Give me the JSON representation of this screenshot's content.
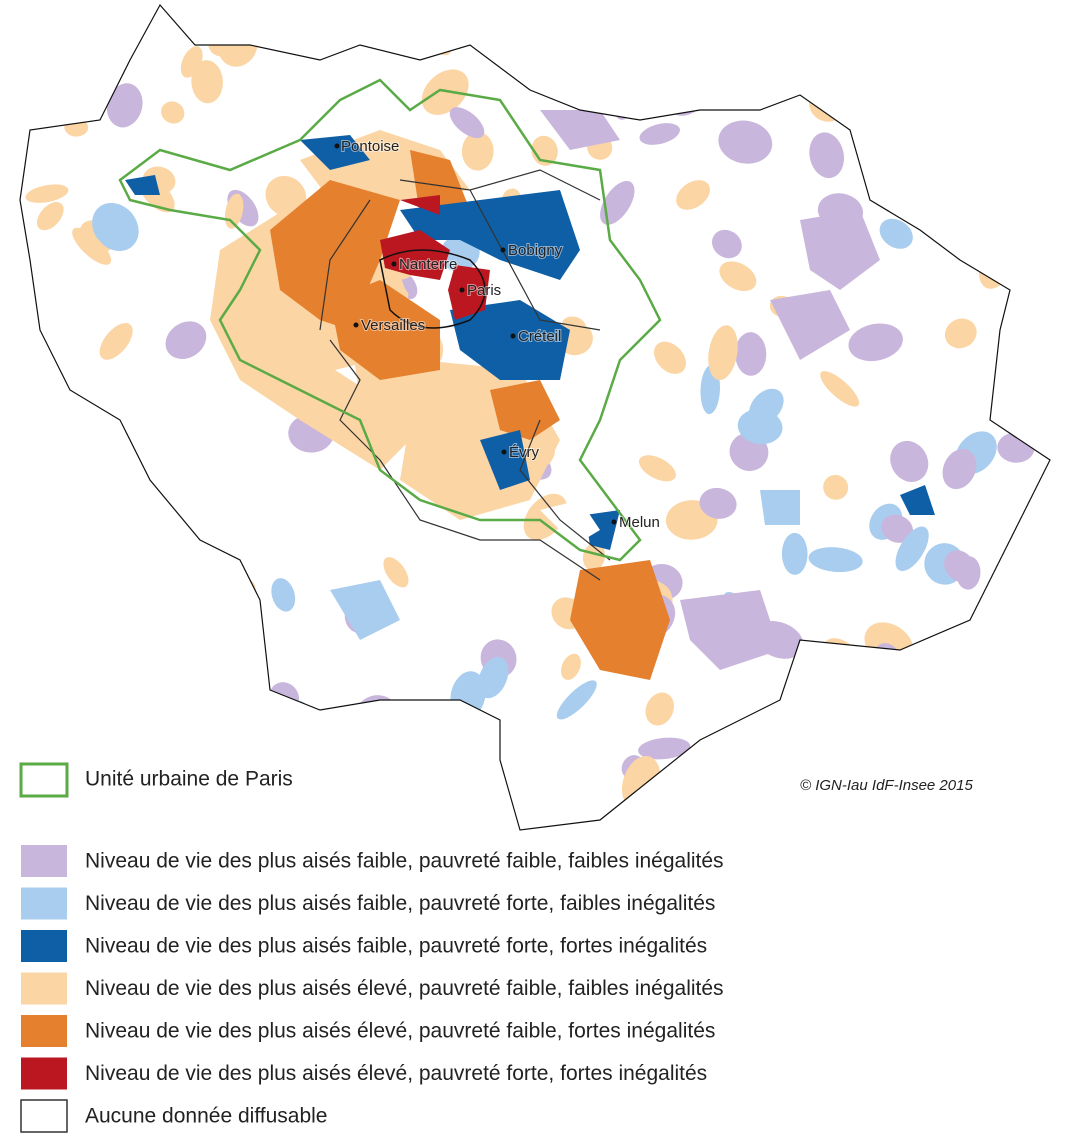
{
  "map": {
    "cities": [
      {
        "name": "Pontoise"
      },
      {
        "name": "Bobigny"
      },
      {
        "name": "Nanterre"
      },
      {
        "name": "Paris"
      },
      {
        "name": "Versailles"
      },
      {
        "name": "Créteil"
      },
      {
        "name": "Évry"
      },
      {
        "name": "Melun"
      }
    ],
    "credit": "© IGN-Iau IdF-Insee 2015",
    "legend": {
      "urban_unit": {
        "label": "Unité urbaine de Paris",
        "color": "#5aaa46"
      },
      "classes": [
        {
          "label": "Niveau de vie des plus aisés faible, pauvreté faible, faibles inégalités",
          "color": "#c9b6dc"
        },
        {
          "label": "Niveau de vie des plus aisés faible, pauvreté forte, faibles inégalités",
          "color": "#a9cdee"
        },
        {
          "label": "Niveau de vie des plus aisés faible, pauvreté forte, fortes inégalités",
          "color": "#0e5fa6"
        },
        {
          "label": "Niveau de vie des plus aisés élevé, pauvreté faible, faibles inégalités",
          "color": "#fbd5a4"
        },
        {
          "label": "Niveau de vie des plus aisés élevé, pauvreté faible, fortes inégalités",
          "color": "#e5802f"
        },
        {
          "label": "Niveau de vie des plus aisés élevé, pauvreté forte, fortes inégalités",
          "color": "#bb1720"
        },
        {
          "label": "Aucune donnée diffusable",
          "color": "#ffffff"
        }
      ]
    }
  }
}
